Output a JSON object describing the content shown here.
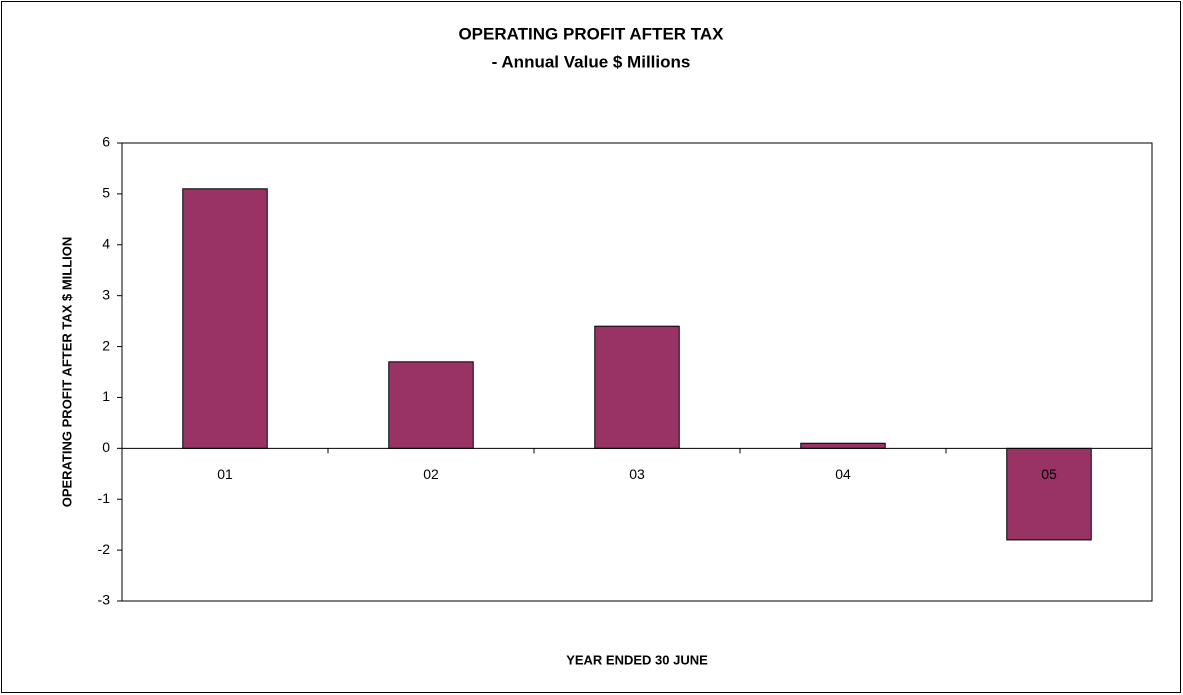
{
  "chart_data": {
    "type": "bar",
    "title": "OPERATING PROFIT AFTER TAX",
    "subtitle": "- Annual Value $ Millions",
    "x_label": "YEAR ENDED 30 JUNE",
    "y_label": "OPERATING PROFIT AFTER TAX  $ MILLION",
    "categories": [
      "01",
      "02",
      "03",
      "04",
      "05"
    ],
    "values": [
      5.1,
      1.7,
      2.4,
      0.1,
      -1.8
    ],
    "color": "#993366",
    "ylim": [
      -3,
      6
    ],
    "yticks": [
      -3,
      -2,
      -1,
      0,
      1,
      2,
      3,
      4,
      5,
      6
    ],
    "grid": false
  }
}
